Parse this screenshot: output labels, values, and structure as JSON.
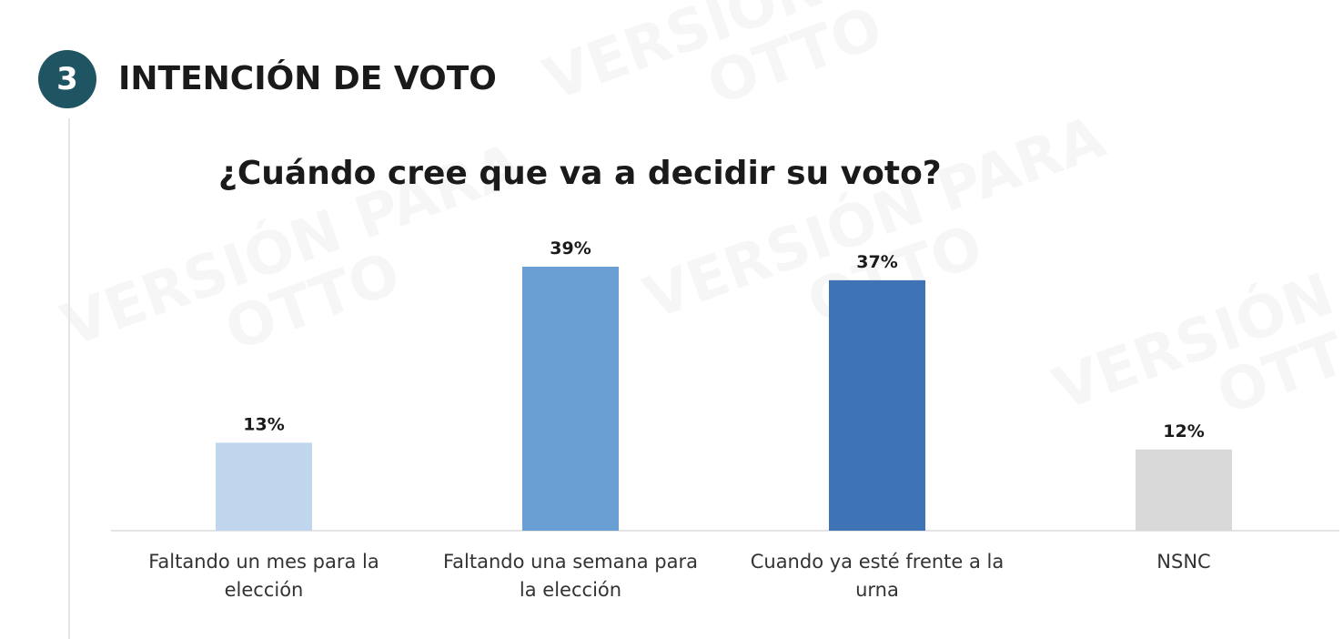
{
  "section": {
    "number": "3",
    "title": "INTENCIÓN DE VOTO"
  },
  "watermark": {
    "text": "VERSIÓN PARA\nOTTO"
  },
  "chart_data": {
    "type": "bar",
    "title": "¿Cuándo cree que va a decidir su voto?",
    "categories": [
      [
        "Faltando un mes para la",
        "elección"
      ],
      [
        "Faltando una semana para",
        "la elección"
      ],
      [
        "Cuando ya esté frente a la",
        "urna"
      ],
      [
        "NSNC"
      ]
    ],
    "values": [
      13,
      39,
      37,
      12
    ],
    "value_labels": [
      "13%",
      "39%",
      "37%",
      "12%"
    ],
    "colors": [
      "#c0d6ec",
      "#6a9fd4",
      "#3e74b5",
      "#d9d9d9"
    ],
    "ylim": [
      0,
      39
    ],
    "grid": false,
    "legend": "none"
  }
}
